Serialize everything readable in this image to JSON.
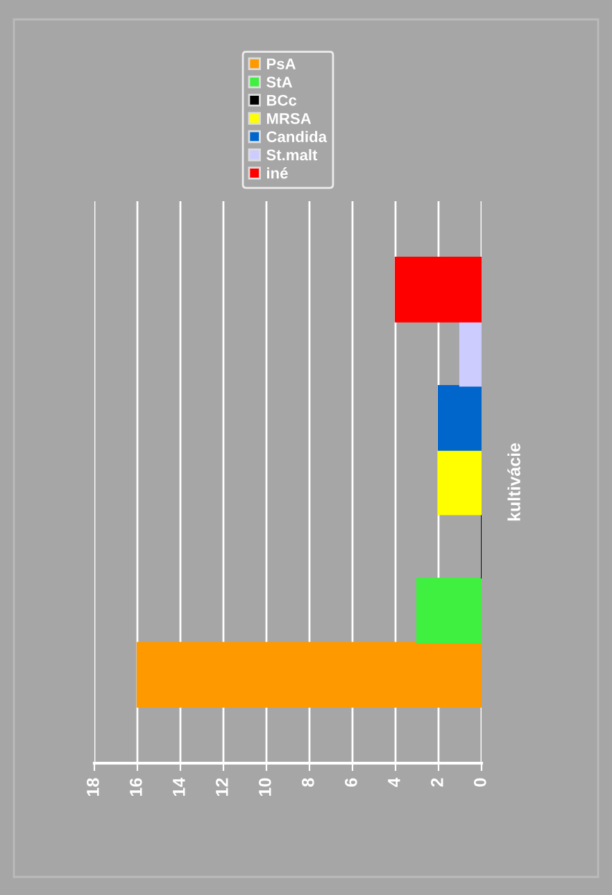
{
  "chart_data": {
    "type": "bar",
    "orientation": "horizontal",
    "categories": [
      null
    ],
    "ylabel": "kultivácie",
    "series": [
      {
        "name": "PsA",
        "color": "#ff9900",
        "values": [
          16
        ]
      },
      {
        "name": "StA",
        "color": "#40f040",
        "values": [
          3
        ]
      },
      {
        "name": "BCc",
        "color": "#000000",
        "values": [
          0
        ]
      },
      {
        "name": "MRSA",
        "color": "#ffff00",
        "values": [
          2
        ]
      },
      {
        "name": "Candida",
        "color": "#0066cc",
        "values": [
          2
        ]
      },
      {
        "name": "St.malt",
        "color": "#ccccff",
        "values": [
          1
        ]
      },
      {
        "name": "iné",
        "color": "#ff0000",
        "values": [
          4
        ]
      }
    ],
    "xlim": [
      18,
      0
    ],
    "xticks": [
      18,
      16,
      14,
      12,
      10,
      8,
      6,
      4,
      2,
      0
    ],
    "grid": "x",
    "legend": "top"
  }
}
